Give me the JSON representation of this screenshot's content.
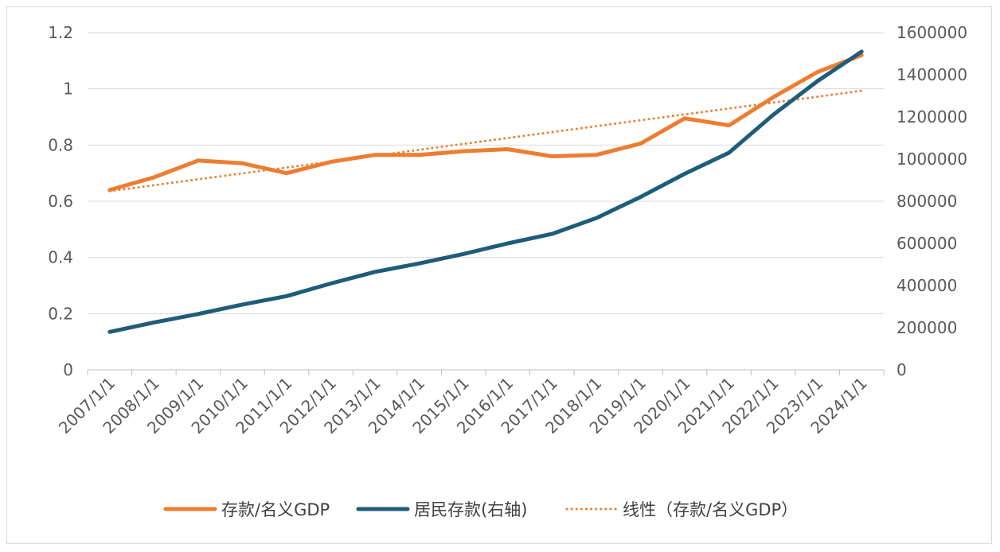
{
  "chart_data": {
    "type": "line",
    "categories": [
      "2007/1/1",
      "2008/1/1",
      "2009/1/1",
      "2010/1/1",
      "2011/1/1",
      "2012/1/1",
      "2013/1/1",
      "2014/1/1",
      "2015/1/1",
      "2016/1/1",
      "2017/1/1",
      "2018/1/1",
      "2019/1/1",
      "2020/1/1",
      "2021/1/1",
      "2022/1/1",
      "2023/1/1",
      "2024/1/1"
    ],
    "series": [
      {
        "name": "存款/名义GDP",
        "axis": "left",
        "color": "#ED7D31",
        "style": "solid",
        "values": [
          0.64,
          0.685,
          0.745,
          0.735,
          0.7,
          0.74,
          0.765,
          0.765,
          0.778,
          0.785,
          0.76,
          0.765,
          0.805,
          0.895,
          0.87,
          0.97,
          1.06,
          1.12
        ]
      },
      {
        "name": "居民存款(右轴)",
        "axis": "right",
        "color": "#1F5C7A",
        "style": "solid",
        "values": [
          180000,
          225000,
          265000,
          310000,
          350000,
          410000,
          465000,
          505000,
          550000,
          600000,
          645000,
          720000,
          820000,
          930000,
          1030000,
          1210000,
          1370000,
          1510000
        ]
      },
      {
        "name": "线性（存款/名义GDP）",
        "axis": "left",
        "color": "#ED7D31",
        "style": "dotted",
        "values": [
          0.636,
          0.657,
          0.678,
          0.699,
          0.72,
          0.741,
          0.762,
          0.783,
          0.804,
          0.825,
          0.846,
          0.867,
          0.888,
          0.909,
          0.93,
          0.951,
          0.972,
          0.993
        ]
      }
    ],
    "y_left": {
      "min": 0,
      "max": 1.2,
      "ticks": [
        {
          "v": 0,
          "label": "0"
        },
        {
          "v": 0.2,
          "label": "0.2"
        },
        {
          "v": 0.4,
          "label": "0.4"
        },
        {
          "v": 0.6,
          "label": "0.6"
        },
        {
          "v": 0.8,
          "label": "0.8"
        },
        {
          "v": 1.0,
          "label": "1"
        },
        {
          "v": 1.2,
          "label": "1.2"
        }
      ]
    },
    "y_right": {
      "min": 0,
      "max": 1600000,
      "ticks": [
        {
          "v": 0,
          "label": "0"
        },
        {
          "v": 200000,
          "label": "200000"
        },
        {
          "v": 400000,
          "label": "400000"
        },
        {
          "v": 600000,
          "label": "600000"
        },
        {
          "v": 800000,
          "label": "800000"
        },
        {
          "v": 1000000,
          "label": "1000000"
        },
        {
          "v": 1200000,
          "label": "1200000"
        },
        {
          "v": 1400000,
          "label": "1400000"
        },
        {
          "v": 1600000,
          "label": "1600000"
        }
      ]
    },
    "grid": true,
    "legend_position": "bottom"
  }
}
